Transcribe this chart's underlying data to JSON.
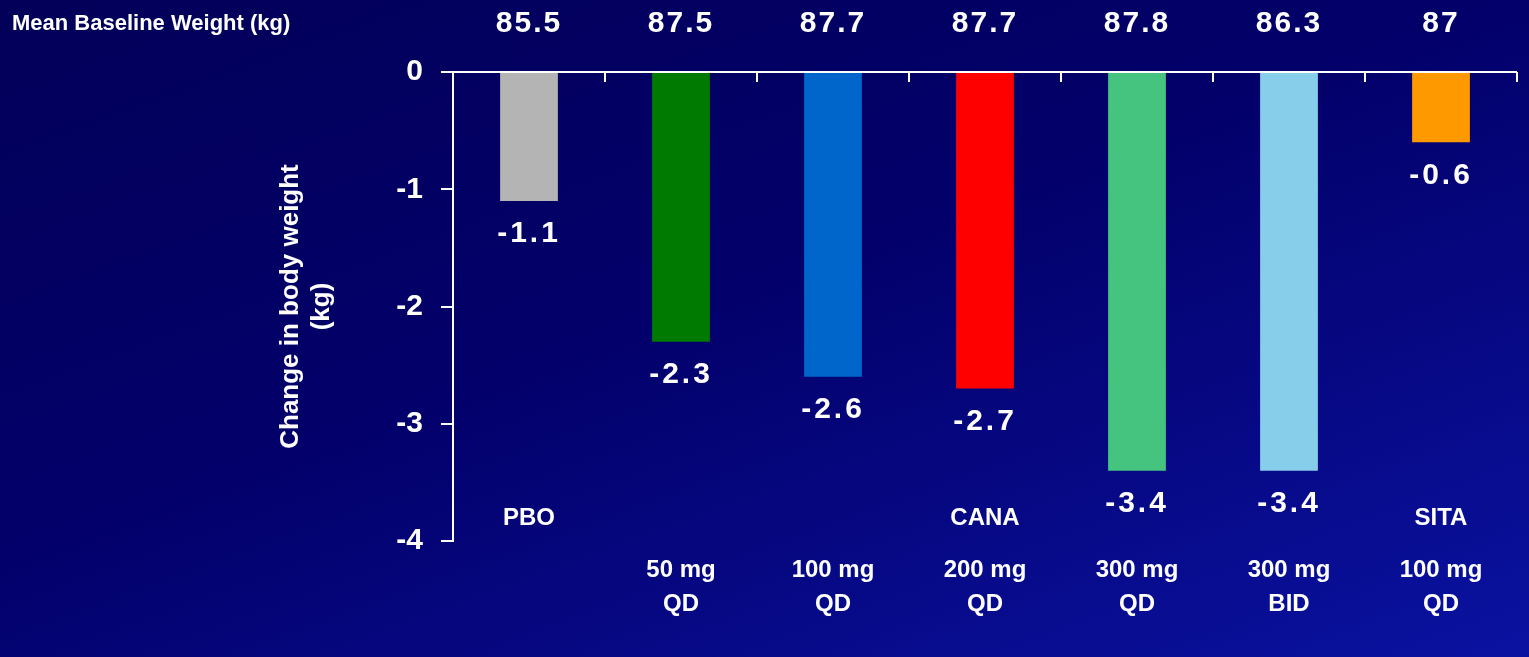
{
  "chart_data": {
    "type": "bar",
    "categories": [
      "PBO",
      "50 mg\nQD",
      "100 mg\nQD",
      "200 mg\nQD",
      "300 mg\nQD",
      "300 mg\nBID",
      "SITA\n100 mg\nQD"
    ],
    "values": [
      -1.1,
      -2.3,
      -2.6,
      -2.7,
      -3.4,
      -3.4,
      -0.6
    ],
    "colors": [
      "#b4b4b4",
      "#007a00",
      "#0066cc",
      "#ff0000",
      "#44c47f",
      "#87ceeb",
      "#ff9900"
    ],
    "ylabel": "Change in body weight (kg)",
    "ylim": [
      -4,
      0
    ],
    "yticks": [
      -4,
      -3,
      -2,
      -1,
      0
    ],
    "data_labels": true,
    "annotations": [
      "Mean Baseline Weight (kg)",
      "85.5",
      "87.5",
      "87.7",
      "87.7",
      "87.8",
      "86.3",
      "87",
      "CANA"
    ]
  }
}
